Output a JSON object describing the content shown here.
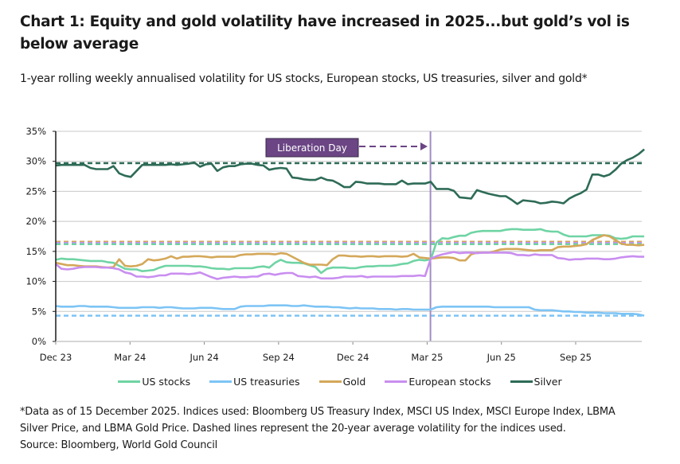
{
  "header": {
    "title": "Chart 1: Equity and gold volatility have increased in 2025...but gold’s vol is below average",
    "subtitle": "1-year rolling weekly annualised volatility for US stocks, European stocks, US treasuries, silver and gold*"
  },
  "footer": {
    "note_line1": "*Data as of 15 December 2025. Indices used: Bloomberg US Treasury Index, MSCI US Index, MSCI Europe Index, LBMA",
    "note_line2": "Silver Price, and LBMA Gold Price. Dashed lines represent the 20-year average volatility for the indices used.",
    "source": "Source: Bloomberg, World Gold Council"
  },
  "chart_data": {
    "type": "line",
    "title": "Chart 1: Equity and gold volatility have increased in 2025...but gold’s vol is below average",
    "subtitle": "1-year rolling weekly annualised volatility for US stocks, European stocks, US treasuries, silver and gold*",
    "xlabel": "",
    "ylabel": "",
    "ylim": [
      0,
      35
    ],
    "yticks": [
      "0%",
      "5%",
      "10%",
      "15%",
      "20%",
      "25%",
      "30%",
      "35%"
    ],
    "ytick_values": [
      0,
      5,
      10,
      15,
      20,
      25,
      30,
      35
    ],
    "xticks": [
      "Dec 23",
      "Mar 24",
      "Jun 24",
      "Sep 24",
      "Dec 24",
      "Mar 25",
      "Jun 25",
      "Sep 25"
    ],
    "xtick_weeks": [
      0,
      13,
      26,
      39,
      52,
      65,
      78,
      91
    ],
    "x_weeks_total": 103,
    "grid": "horizontal",
    "legend_position": "bottom",
    "annotation": {
      "label": "Liberation Day",
      "week": 66,
      "color": "#6b4584"
    },
    "averages_20y": [
      {
        "name": "Silver",
        "value": 29.7,
        "color": "#2e6b57"
      },
      {
        "name": "Gold",
        "value": 16.6,
        "color": "#d4a85a"
      },
      {
        "name": "European stocks",
        "value": 16.4,
        "color": "#c98ef0"
      },
      {
        "name": "US stocks",
        "value": 16.2,
        "color": "#6fd4a4"
      },
      {
        "name": "US treasuries",
        "value": 4.3,
        "color": "#7dc4f5"
      }
    ],
    "series": [
      {
        "name": "US stocks",
        "color": "#6fd4a4",
        "values": [
          13.6,
          13.8,
          13.7,
          13.7,
          13.6,
          13.5,
          13.4,
          13.4,
          13.4,
          13.2,
          13.1,
          12.6,
          12.1,
          12.0,
          12.0,
          11.7,
          11.8,
          11.9,
          12.3,
          12.6,
          12.6,
          12.6,
          12.6,
          12.6,
          12.5,
          12.5,
          12.4,
          12.2,
          12.1,
          12.1,
          12.0,
          12.2,
          12.2,
          12.2,
          12.2,
          12.4,
          12.5,
          12.3,
          13.1,
          13.6,
          13.2,
          13.1,
          13.1,
          13.0,
          12.7,
          12.4,
          11.4,
          12.1,
          12.3,
          12.3,
          12.3,
          12.2,
          12.2,
          12.4,
          12.5,
          12.5,
          12.6,
          12.6,
          12.6,
          12.7,
          12.9,
          13.0,
          13.4,
          13.6,
          13.5,
          13.7,
          16.5,
          17.2,
          17.1,
          17.4,
          17.6,
          17.6,
          18.1,
          18.3,
          18.4,
          18.4,
          18.4,
          18.4,
          18.6,
          18.7,
          18.7,
          18.6,
          18.6,
          18.6,
          18.7,
          18.4,
          18.3,
          18.3,
          17.8,
          17.5,
          17.5,
          17.5,
          17.5,
          17.7,
          17.7,
          17.7,
          17.6,
          17.2,
          17.1,
          17.2,
          17.5,
          17.5,
          17.5
        ]
      },
      {
        "name": "US treasuries",
        "color": "#7dc4f5",
        "values": [
          5.9,
          5.8,
          5.8,
          5.8,
          5.9,
          5.9,
          5.8,
          5.8,
          5.8,
          5.8,
          5.7,
          5.6,
          5.6,
          5.6,
          5.6,
          5.7,
          5.7,
          5.7,
          5.6,
          5.7,
          5.7,
          5.6,
          5.5,
          5.5,
          5.5,
          5.6,
          5.6,
          5.6,
          5.5,
          5.4,
          5.4,
          5.4,
          5.8,
          5.9,
          5.9,
          5.9,
          5.9,
          6.0,
          6.0,
          6.0,
          6.0,
          5.9,
          5.9,
          6.0,
          5.9,
          5.8,
          5.8,
          5.8,
          5.7,
          5.7,
          5.6,
          5.5,
          5.6,
          5.5,
          5.5,
          5.5,
          5.4,
          5.4,
          5.4,
          5.3,
          5.4,
          5.4,
          5.3,
          5.3,
          5.3,
          5.3,
          5.7,
          5.8,
          5.8,
          5.8,
          5.8,
          5.8,
          5.8,
          5.8,
          5.8,
          5.8,
          5.7,
          5.7,
          5.7,
          5.7,
          5.7,
          5.7,
          5.7,
          5.3,
          5.2,
          5.2,
          5.2,
          5.1,
          5.0,
          5.0,
          4.9,
          4.9,
          4.8,
          4.8,
          4.8,
          4.7,
          4.7,
          4.7,
          4.6,
          4.6,
          4.6,
          4.5,
          4.3
        ]
      },
      {
        "name": "Gold",
        "color": "#d4a85a",
        "values": [
          13.1,
          12.9,
          12.7,
          12.7,
          12.6,
          12.5,
          12.5,
          12.5,
          12.4,
          12.3,
          12.4,
          13.7,
          12.6,
          12.5,
          12.6,
          12.9,
          13.7,
          13.5,
          13.6,
          13.8,
          14.2,
          13.8,
          14.1,
          14.1,
          14.2,
          14.2,
          14.1,
          14.0,
          14.1,
          14.1,
          14.1,
          14.1,
          14.4,
          14.5,
          14.5,
          14.6,
          14.6,
          14.6,
          14.5,
          14.7,
          14.6,
          14.1,
          13.6,
          13.1,
          12.8,
          12.8,
          12.8,
          12.7,
          13.7,
          14.3,
          14.3,
          14.2,
          14.2,
          14.1,
          14.2,
          14.2,
          14.1,
          14.2,
          14.2,
          14.2,
          14.1,
          14.2,
          14.6,
          14.0,
          13.9,
          13.8,
          13.9,
          14.0,
          14.0,
          13.9,
          13.5,
          13.5,
          14.5,
          14.8,
          14.8,
          14.8,
          15.0,
          15.3,
          15.4,
          15.4,
          15.4,
          15.3,
          15.2,
          15.1,
          15.2,
          15.2,
          15.2,
          15.7,
          15.8,
          15.8,
          15.9,
          16.0,
          16.2,
          16.9,
          17.3,
          17.7,
          17.5,
          16.9,
          16.3,
          16.1,
          16.1,
          16.0,
          16.1
        ]
      },
      {
        "name": "European stocks",
        "color": "#c98ef0",
        "values": [
          12.9,
          12.1,
          12.0,
          12.1,
          12.3,
          12.4,
          12.4,
          12.4,
          12.3,
          12.3,
          12.2,
          12.0,
          11.5,
          11.3,
          10.8,
          10.8,
          10.7,
          10.8,
          11.0,
          11.0,
          11.3,
          11.3,
          11.3,
          11.2,
          11.3,
          11.5,
          11.1,
          10.7,
          10.4,
          10.6,
          10.7,
          10.8,
          10.7,
          10.7,
          10.8,
          10.8,
          11.2,
          11.3,
          11.1,
          11.3,
          11.4,
          11.4,
          10.9,
          10.8,
          10.7,
          10.8,
          10.5,
          10.5,
          10.5,
          10.6,
          10.8,
          10.8,
          10.8,
          10.9,
          10.7,
          10.8,
          10.8,
          10.8,
          10.8,
          10.8,
          10.9,
          10.9,
          10.9,
          11.0,
          10.9,
          13.8,
          14.2,
          14.5,
          14.7,
          14.9,
          14.7,
          14.8,
          14.8,
          14.7,
          14.8,
          14.8,
          14.8,
          14.8,
          14.8,
          14.7,
          14.4,
          14.4,
          14.3,
          14.5,
          14.4,
          14.4,
          14.4,
          13.9,
          13.8,
          13.6,
          13.7,
          13.7,
          13.8,
          13.8,
          13.8,
          13.7,
          13.7,
          13.8,
          14.0,
          14.1,
          14.2,
          14.1,
          14.1
        ]
      },
      {
        "name": "Silver",
        "color": "#2e6b57",
        "values": [
          29.3,
          29.4,
          29.4,
          29.4,
          29.4,
          29.4,
          28.9,
          28.7,
          28.7,
          28.7,
          29.2,
          28.0,
          27.6,
          27.4,
          28.4,
          29.4,
          29.4,
          29.4,
          29.4,
          29.4,
          29.5,
          29.4,
          29.5,
          29.6,
          29.8,
          29.1,
          29.5,
          29.6,
          28.4,
          29.0,
          29.2,
          29.2,
          29.5,
          29.6,
          29.6,
          29.4,
          29.3,
          28.6,
          28.8,
          28.9,
          28.8,
          27.3,
          27.2,
          27.0,
          26.9,
          26.9,
          27.3,
          26.9,
          26.8,
          26.3,
          25.7,
          25.7,
          26.6,
          26.5,
          26.3,
          26.3,
          26.3,
          26.2,
          26.2,
          26.2,
          26.8,
          26.2,
          26.3,
          26.3,
          26.3,
          26.6,
          25.4,
          25.4,
          25.4,
          25.1,
          24.0,
          23.9,
          23.8,
          25.2,
          24.9,
          24.6,
          24.4,
          24.2,
          24.2,
          23.6,
          22.9,
          23.5,
          23.4,
          23.3,
          23.0,
          23.1,
          23.3,
          23.2,
          23.0,
          23.8,
          24.3,
          24.7,
          25.3,
          27.8,
          27.8,
          27.5,
          27.8,
          28.6,
          29.6,
          30.2,
          30.6,
          31.2,
          32.0
        ]
      }
    ]
  },
  "legend": {
    "items": [
      {
        "label": "US stocks",
        "color": "#6fd4a4"
      },
      {
        "label": "US treasuries",
        "color": "#7dc4f5"
      },
      {
        "label": "Gold",
        "color": "#d4a85a"
      },
      {
        "label": "European stocks",
        "color": "#c98ef0"
      },
      {
        "label": "Silver",
        "color": "#2e6b57"
      }
    ]
  }
}
